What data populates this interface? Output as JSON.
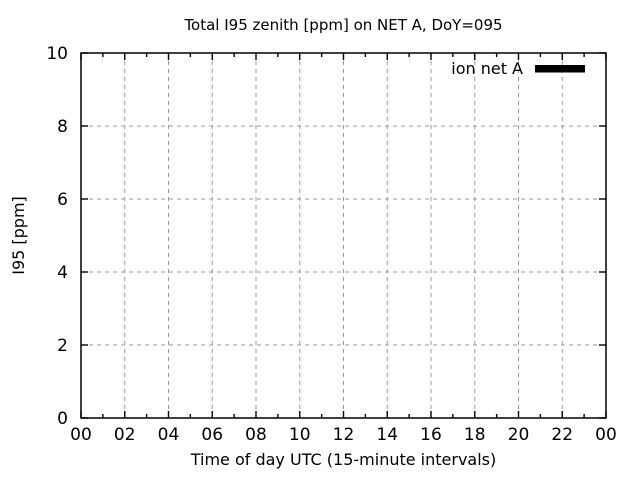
{
  "chart_data": {
    "type": "line",
    "title": "Total I95 zenith [ppm] on NET A, DoY=095",
    "xlabel": "Time of day UTC (15-minute intervals)",
    "ylabel": "I95 [ppm]",
    "xlim": [
      0,
      24
    ],
    "ylim": [
      0,
      10
    ],
    "x_major_ticks": [
      0,
      2,
      4,
      6,
      8,
      10,
      12,
      14,
      16,
      18,
      20,
      22,
      24
    ],
    "x_tick_labels": [
      "00",
      "02",
      "04",
      "06",
      "08",
      "10",
      "12",
      "14",
      "16",
      "18",
      "20",
      "22",
      "00"
    ],
    "x_minor_ticks": [
      1,
      3,
      5,
      7,
      9,
      11,
      13,
      15,
      17,
      19,
      21,
      23
    ],
    "y_major_ticks": [
      0,
      2,
      4,
      6,
      8,
      10
    ],
    "y_tick_labels": [
      "0",
      "2",
      "4",
      "6",
      "8",
      "10"
    ],
    "grid": true,
    "grid_style": "dashed",
    "legend": {
      "position": "inside top-right",
      "entries": [
        {
          "label": "ion net A",
          "color": "#000000",
          "sample": "thick-line"
        }
      ]
    },
    "series": [
      {
        "name": "ion net A",
        "color": "#000000",
        "points": []
      }
    ],
    "colors": {
      "background": "#ffffff",
      "text": "#000000",
      "axis": "#000000",
      "grid": "#999999"
    }
  }
}
